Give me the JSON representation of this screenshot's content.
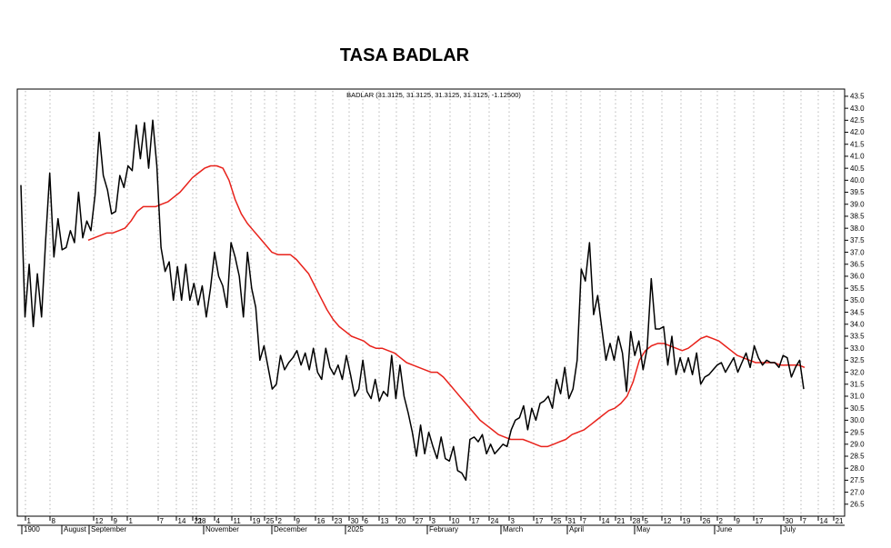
{
  "title": "TASA BADLAR",
  "chart_data": {
    "type": "line",
    "title": "TASA BADLAR",
    "legend": "BADLAR (31.3125, 31.3125, 31.3125, 31.3125, -1.12500)",
    "legend_placement": "top-center",
    "grid": "vertical-dotted",
    "y_axis_side": "right",
    "ylim": [
      26.0,
      43.8
    ],
    "y_ticks": [
      "26.5",
      "27.0",
      "27.5",
      "28.0",
      "28.5",
      "29.0",
      "29.5",
      "30.0",
      "30.5",
      "31.0",
      "31.5",
      "32.0",
      "32.5",
      "33.0",
      "33.5",
      "34.0",
      "34.5",
      "35.0",
      "35.5",
      "36.0",
      "36.5",
      "37.0",
      "37.5",
      "38.0",
      "38.5",
      "39.0",
      "39.5",
      "40.0",
      "40.5",
      "41.0",
      "41.5",
      "42.0",
      "42.5",
      "43.0",
      "43.5"
    ],
    "x_day_labels": [
      "1",
      "8",
      "12",
      "9",
      "1",
      "7",
      "14",
      "21",
      "28",
      "4",
      "11",
      "19",
      "25",
      "2",
      "9",
      "16",
      "23",
      "30",
      "6",
      "13",
      "20",
      "27",
      "3",
      "10",
      "17",
      "24",
      "3",
      "17",
      "25",
      "31",
      "7",
      "14",
      "21",
      "28",
      "5",
      "12",
      "19",
      "26",
      "2",
      "9",
      "17",
      "30",
      "7",
      "14",
      "21"
    ],
    "x_month_labels": [
      "1900",
      "August",
      "September",
      "November",
      "December",
      "2025",
      "February",
      "March",
      "April",
      "May",
      "June",
      "July"
    ],
    "colors": {
      "price": "#000000",
      "average": "#e8221b",
      "grid": "#9a9a9a",
      "axis": "#000000"
    },
    "series": [
      {
        "values": [
          39.8,
          34.3,
          36.5,
          33.9,
          36.1,
          34.3,
          37.5,
          40.3,
          36.8,
          38.4,
          37.1,
          37.2,
          37.9,
          37.4,
          39.5,
          37.6,
          38.3,
          37.9,
          39.4,
          42.0,
          40.2,
          39.6,
          38.6,
          38.7,
          40.2,
          39.7,
          40.6,
          40.4,
          42.3,
          40.9,
          42.4,
          40.5,
          42.5,
          40.6,
          37.2,
          36.2,
          36.6,
          35.0,
          36.4,
          35.0,
          36.5,
          35.0,
          35.7,
          34.8,
          35.6,
          34.3,
          35.5,
          37.0,
          36.0,
          35.6,
          34.7,
          37.4,
          36.8,
          36.0,
          34.3,
          37.0,
          35.5,
          34.7,
          32.5,
          33.1,
          32.2,
          31.3,
          31.5,
          32.7,
          32.1,
          32.4,
          32.6,
          32.9,
          32.3,
          32.8,
          32.1,
          33.0,
          32.0,
          31.7,
          33.0,
          32.2,
          31.9,
          32.3,
          31.7,
          32.7,
          31.9,
          31.0,
          31.3,
          32.5,
          31.2,
          30.9,
          31.7,
          30.8,
          31.2,
          31.0,
          32.7,
          30.9,
          32.3,
          31.0,
          30.3,
          29.5,
          28.5,
          29.8,
          28.6,
          29.5,
          28.9,
          28.4,
          29.3,
          28.4,
          28.3,
          28.9,
          27.9,
          27.8,
          27.5,
          29.2,
          29.3,
          29.1,
          29.4,
          28.6,
          29.0,
          28.6,
          28.8,
          29.0,
          28.9,
          29.6,
          30.0,
          30.1,
          30.6,
          29.6,
          30.5,
          30.0,
          30.7,
          30.8,
          31.0,
          30.5,
          31.7,
          31.1,
          32.2,
          30.9,
          31.3,
          32.5,
          36.3,
          35.8,
          37.4,
          34.4,
          35.2,
          33.8,
          32.5,
          33.2,
          32.5,
          33.5,
          32.8,
          31.2,
          33.7,
          32.7,
          33.3,
          32.1,
          33.0,
          35.9,
          33.8,
          33.8,
          33.9,
          32.3,
          33.5,
          31.9,
          32.6,
          32.0,
          32.6,
          31.9,
          32.8,
          31.5,
          31.8,
          31.9,
          32.1,
          32.3,
          32.4,
          32.0,
          32.3,
          32.6,
          32.0,
          32.4,
          32.8,
          32.2,
          33.1,
          32.6,
          32.3,
          32.5,
          32.4,
          32.4,
          32.2,
          32.7,
          32.6,
          31.8,
          32.2,
          32.5,
          31.3
        ]
      },
      {
        "values": [
          37.5,
          37.6,
          37.7,
          37.8,
          37.8,
          37.9,
          38.0,
          38.3,
          38.7,
          38.9,
          38.9,
          38.9,
          39.0,
          39.1,
          39.3,
          39.5,
          39.8,
          40.1,
          40.3,
          40.5,
          40.6,
          40.6,
          40.5,
          40.0,
          39.2,
          38.6,
          38.2,
          37.9,
          37.6,
          37.3,
          37.0,
          36.9,
          36.9,
          36.9,
          36.7,
          36.4,
          36.1,
          35.6,
          35.1,
          34.6,
          34.2,
          33.9,
          33.7,
          33.5,
          33.4,
          33.3,
          33.1,
          33.0,
          33.0,
          32.9,
          32.8,
          32.6,
          32.4,
          32.3,
          32.2,
          32.1,
          32.0,
          32.0,
          31.8,
          31.5,
          31.2,
          30.9,
          30.6,
          30.3,
          30.0,
          29.8,
          29.6,
          29.4,
          29.3,
          29.2,
          29.2,
          29.2,
          29.1,
          29.0,
          28.9,
          28.9,
          29.0,
          29.1,
          29.2,
          29.4,
          29.5,
          29.6,
          29.8,
          30.0,
          30.2,
          30.4,
          30.5,
          30.7,
          31.0,
          31.6,
          32.5,
          32.9,
          33.1,
          33.2,
          33.2,
          33.1,
          33.0,
          32.9,
          33.0,
          33.2,
          33.4,
          33.5,
          33.4,
          33.3,
          33.1,
          32.9,
          32.7,
          32.6,
          32.5,
          32.4,
          32.4,
          32.4,
          32.4,
          32.3,
          32.3,
          32.3,
          32.3,
          32.2
        ]
      }
    ]
  }
}
